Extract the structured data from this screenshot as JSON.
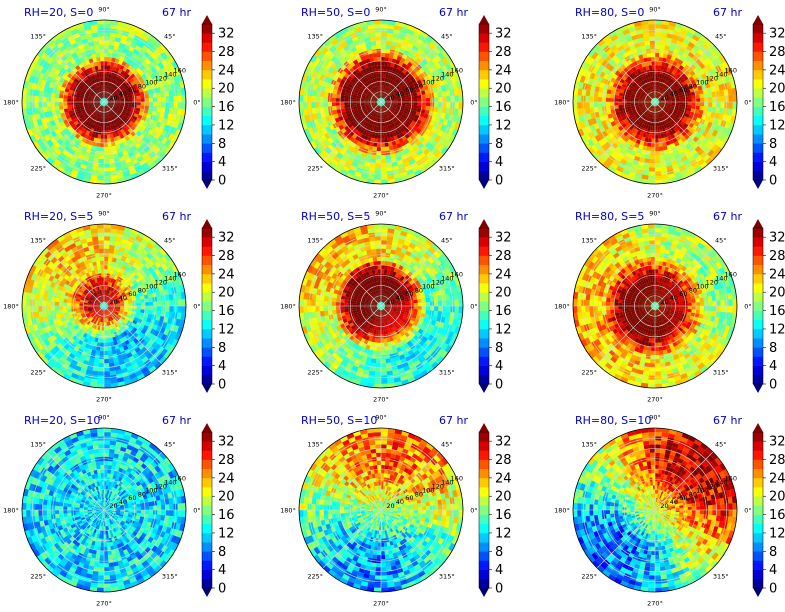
{
  "chart_data": {
    "type": "heatmap",
    "projection": "polar",
    "layout": {
      "rows": 3,
      "cols": 3
    },
    "time_label": "67 hr",
    "angle_ticks": [
      "0°",
      "45°",
      "90°",
      "135°",
      "180°",
      "225°",
      "270°",
      "315°"
    ],
    "radial_ticks": [
      20,
      40,
      60,
      80,
      100,
      120,
      140,
      160
    ],
    "radial_max": 160,
    "colorbar": {
      "ticks": [
        0,
        4,
        8,
        12,
        16,
        20,
        24,
        28,
        32
      ],
      "min": 0,
      "max": 34,
      "extend": "both",
      "colormap": "jet"
    },
    "panels": [
      {
        "title": "RH=20, S=0",
        "eye_radius": 4,
        "core_radius": 55,
        "core_value": 34,
        "mid_value": 22,
        "outer_value": 14,
        "sector_dir_deg": 0,
        "sector_strength": 0
      },
      {
        "title": "RH=50, S=0",
        "eye_radius": 3,
        "core_radius": 70,
        "core_value": 34,
        "mid_value": 22,
        "outer_value": 16,
        "sector_dir_deg": 0,
        "sector_strength": 0
      },
      {
        "title": "RH=80, S=0",
        "eye_radius": 3,
        "core_radius": 58,
        "core_value": 34,
        "mid_value": 24,
        "outer_value": 18,
        "sector_dir_deg": 0,
        "sector_strength": 0
      },
      {
        "title": "RH=20, S=5",
        "eye_radius": 3,
        "core_radius": 28,
        "core_value": 30,
        "mid_value": 20,
        "outer_value": 14,
        "sector_dir_deg": 120,
        "sector_strength": 0.6
      },
      {
        "title": "RH=50, S=5",
        "eye_radius": 4,
        "core_radius": 55,
        "core_value": 34,
        "mid_value": 22,
        "outer_value": 15,
        "sector_dir_deg": 130,
        "sector_strength": 0.5
      },
      {
        "title": "RH=80, S=5",
        "eye_radius": 3,
        "core_radius": 58,
        "core_value": 34,
        "mid_value": 24,
        "outer_value": 18,
        "sector_dir_deg": 200,
        "sector_strength": 0.3
      },
      {
        "title": "RH=20, S=10",
        "eye_radius": 0,
        "core_radius": 0,
        "core_value": 12,
        "mid_value": 13,
        "outer_value": 12,
        "sector_dir_deg": 0,
        "sector_strength": 0
      },
      {
        "title": "RH=50, S=10",
        "eye_radius": 0,
        "core_radius": 0,
        "core_value": 18,
        "mid_value": 18,
        "outer_value": 16,
        "sector_dir_deg": 80,
        "sector_strength": 0.7
      },
      {
        "title": "RH=80, S=10",
        "eye_radius": 0,
        "core_radius": 0,
        "core_value": 20,
        "mid_value": 22,
        "outer_value": 20,
        "sector_dir_deg": 45,
        "sector_strength": 1.0
      }
    ]
  }
}
